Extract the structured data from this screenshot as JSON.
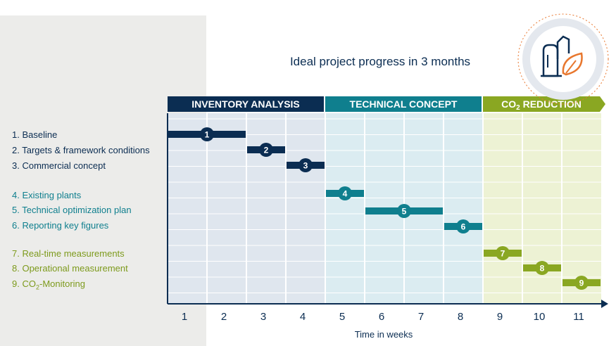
{
  "title": "Ideal project progress in 3 months",
  "chart_data": {
    "type": "gantt",
    "title": "Ideal project progress in 3 months",
    "xlabel": "Time in weeks",
    "x_ticks": [
      "1",
      "2",
      "3",
      "4",
      "5",
      "6",
      "7",
      "8",
      "9",
      "10",
      "11"
    ],
    "phases": [
      {
        "name": "INVENTORY ANALYSIS",
        "start_week": 1,
        "end_week": 4,
        "color": "#0b2d52",
        "bg": "#dfe6ee"
      },
      {
        "name": "TECHNICAL CONCEPT",
        "start_week": 5,
        "end_week": 8,
        "color": "#0f7f8e",
        "bg": "#dbecf1"
      },
      {
        "name": "CO2 REDUCTION",
        "start_week": 9,
        "end_week": 11,
        "color": "#8aa722",
        "bg": "#edf2d4"
      }
    ],
    "tasks": [
      {
        "id": "1",
        "label": "1. Baseline",
        "start_week": 1,
        "end_week": 2,
        "phase": 0
      },
      {
        "id": "2",
        "label": "2. Targets & framework conditions",
        "start_week": 3,
        "end_week": 3,
        "phase": 0
      },
      {
        "id": "3",
        "label": "3. Commercial concept",
        "start_week": 4,
        "end_week": 4,
        "phase": 0
      },
      {
        "id": "4",
        "label": "4. Existing plants",
        "start_week": 5,
        "end_week": 5,
        "phase": 1
      },
      {
        "id": "5",
        "label": "5. Technical optimization plan",
        "start_week": 6,
        "end_week": 7,
        "phase": 1
      },
      {
        "id": "6",
        "label": "6. Reporting key figures",
        "start_week": 8,
        "end_week": 8,
        "phase": 1
      },
      {
        "id": "7",
        "label": "7. Real-time measurements",
        "start_week": 9,
        "end_week": 9,
        "phase": 2
      },
      {
        "id": "8",
        "label": "8. Operational measurement",
        "start_week": 10,
        "end_week": 10,
        "phase": 2
      },
      {
        "id": "9",
        "label": "9. CO2-Monitoring",
        "start_week": 11,
        "end_week": 11,
        "phase": 2
      }
    ]
  },
  "icon": "factory-leaf-icon"
}
